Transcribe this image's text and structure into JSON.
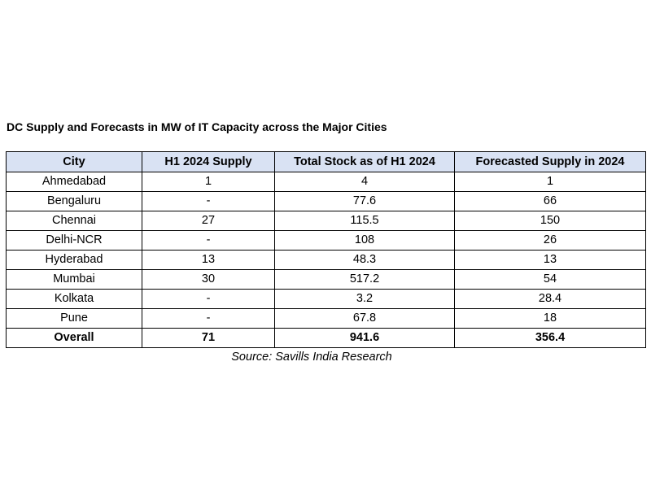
{
  "chart_data": {
    "type": "table",
    "title": "DC Supply and Forecasts in MW of IT Capacity across the Major Cities",
    "columns": [
      "City",
      "H1 2024 Supply",
      "Total Stock as of H1 2024",
      "Forecasted Supply in 2024"
    ],
    "rows": [
      [
        "Ahmedabad",
        "1",
        "4",
        "1"
      ],
      [
        "Bengaluru",
        "-",
        "77.6",
        "66"
      ],
      [
        "Chennai",
        "27",
        "115.5",
        "150"
      ],
      [
        "Delhi-NCR",
        "-",
        "108",
        "26"
      ],
      [
        "Hyderabad",
        "13",
        "48.3",
        "13"
      ],
      [
        "Mumbai",
        "30",
        "517.2",
        "54"
      ],
      [
        "Kolkata",
        "-",
        "3.2",
        "28.4"
      ],
      [
        "Pune",
        "-",
        "67.8",
        "18"
      ]
    ],
    "total": [
      "Overall",
      "71",
      "941.6",
      "356.4"
    ],
    "source": "Source: Savills India Research"
  },
  "colors": {
    "header_bg": "#d9e2f3",
    "border": "#000000",
    "text": "#000000"
  }
}
